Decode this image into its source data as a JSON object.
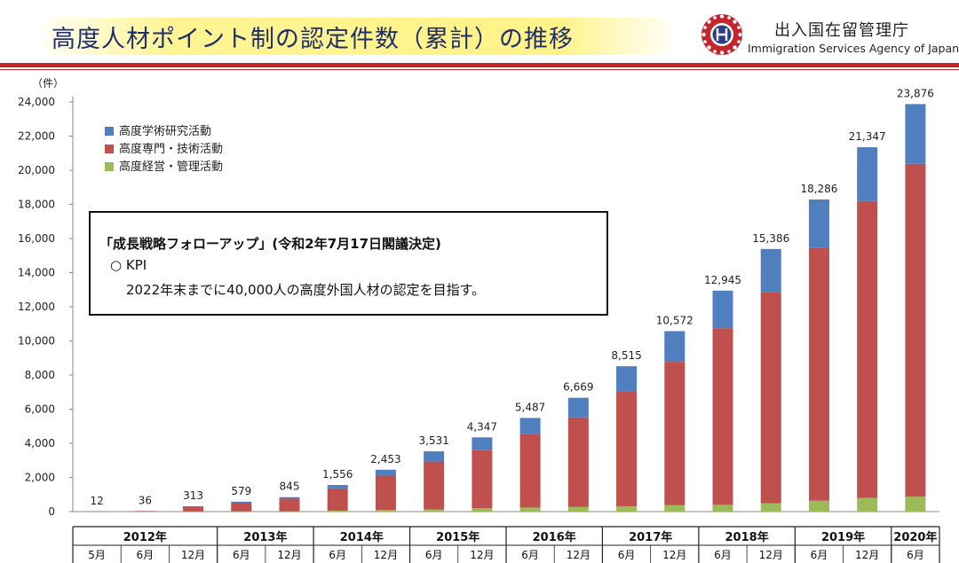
{
  "header": {
    "title": "高度人材ポイント制の認定件数（累計）の推移",
    "agency_ja": "出入国在留管理庁",
    "agency_en": "Immigration Services Agency of Japan"
  },
  "kpi_box": {
    "heading": "「成長戦略フォローアップ」(令和2年7月17日閣議決定)",
    "label": "○ KPI",
    "text": "2022年末までに40,000人の高度外国人材の認定を目指す。"
  },
  "colors": {
    "academic": "#4f7fbf",
    "professional": "#c0504d",
    "business": "#9bbb59",
    "header_rule": "#c1272d"
  },
  "chart_data": {
    "type": "bar",
    "stacked": true,
    "y_unit_label": "（件）",
    "ylim": [
      0,
      24000
    ],
    "y_ticks": [
      "0",
      "2,000",
      "4,000",
      "6,000",
      "8,000",
      "10,000",
      "12,000",
      "14,000",
      "16,000",
      "18,000",
      "20,000",
      "22,000",
      "24,000"
    ],
    "years": [
      {
        "label": "2012年",
        "span": 3
      },
      {
        "label": "2013年",
        "span": 2
      },
      {
        "label": "2014年",
        "span": 2
      },
      {
        "label": "2015年",
        "span": 2
      },
      {
        "label": "2016年",
        "span": 2
      },
      {
        "label": "2017年",
        "span": 2
      },
      {
        "label": "2018年",
        "span": 2
      },
      {
        "label": "2019年",
        "span": 2
      },
      {
        "label": "2020年",
        "span": 1
      }
    ],
    "categories": [
      "5月",
      "6月",
      "12月",
      "6月",
      "12月",
      "6月",
      "12月",
      "6月",
      "12月",
      "6月",
      "12月",
      "6月",
      "12月",
      "6月",
      "12月",
      "6月",
      "12月",
      "6月"
    ],
    "totals": [
      "12",
      "36",
      "313",
      "579",
      "845",
      "1,556",
      "2,453",
      "3,531",
      "4,347",
      "5,487",
      "6,669",
      "8,515",
      "10,572",
      "12,945",
      "15,386",
      "18,286",
      "21,347",
      "23,876"
    ],
    "series": [
      {
        "name": "高度学術研究活動",
        "color_key": "academic",
        "values": [
          2,
          5,
          30,
          60,
          90,
          200,
          350,
          600,
          750,
          950,
          1150,
          1500,
          1800,
          2200,
          2550,
          2850,
          3150,
          3500
        ]
      },
      {
        "name": "高度専門・技術活動",
        "color_key": "professional",
        "values": [
          9,
          29,
          270,
          500,
          735,
          1300,
          2000,
          2800,
          3400,
          4300,
          5250,
          6700,
          8400,
          10350,
          12350,
          14800,
          17400,
          19500
        ]
      },
      {
        "name": "高度経営・管理活動",
        "color_key": "business",
        "values": [
          1,
          2,
          13,
          19,
          20,
          56,
          103,
          131,
          197,
          237,
          269,
          315,
          372,
          395,
          486,
          636,
          797,
          876
        ]
      }
    ]
  }
}
